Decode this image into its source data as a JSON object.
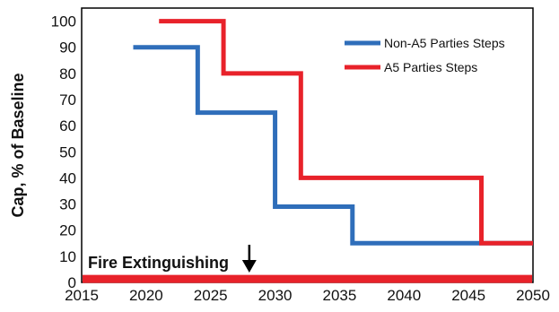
{
  "chart_data": {
    "type": "line",
    "ylabel": "Cap, % of Baseline",
    "xlabel": "",
    "xlim": [
      2015,
      2050
    ],
    "ylim": [
      0,
      105
    ],
    "xticks": [
      2015,
      2020,
      2025,
      2030,
      2035,
      2040,
      2045,
      2050
    ],
    "yticks": [
      0,
      10,
      20,
      30,
      40,
      50,
      60,
      70,
      80,
      90,
      100
    ],
    "grid": false,
    "legend_position": "top-right",
    "series": [
      {
        "name": "Non-A5 Parties Steps",
        "color": "#2f6eba",
        "step": true,
        "points": [
          [
            2019,
            90
          ],
          [
            2024,
            90
          ],
          [
            2024,
            65
          ],
          [
            2030,
            65
          ],
          [
            2030,
            29
          ],
          [
            2036,
            29
          ],
          [
            2036,
            15
          ],
          [
            2050,
            15
          ]
        ]
      },
      {
        "name": "A5 Parties Steps",
        "color": "#e8222a",
        "step": true,
        "points": [
          [
            2021,
            100
          ],
          [
            2026,
            100
          ],
          [
            2026,
            80
          ],
          [
            2032,
            80
          ],
          [
            2032,
            40
          ],
          [
            2046,
            40
          ],
          [
            2046,
            15
          ],
          [
            2050,
            15
          ]
        ]
      }
    ],
    "band": {
      "color": "#e8222a",
      "y": 1.5
    },
    "annotation": {
      "text": "Fire Extinguishing",
      "x_arrow": 2028
    }
  }
}
